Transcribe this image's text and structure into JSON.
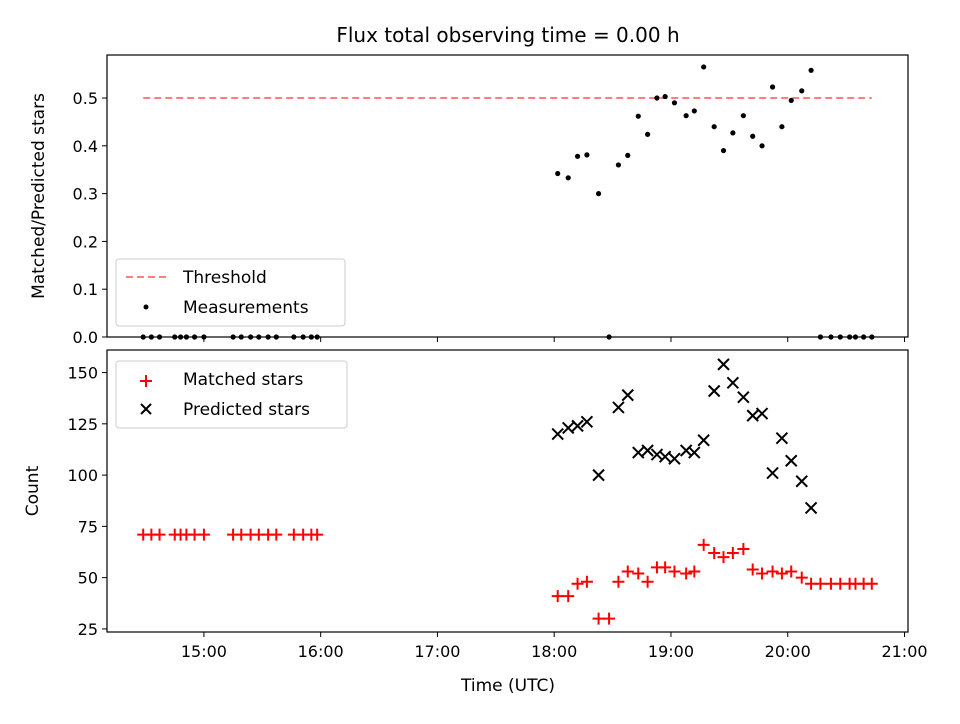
{
  "title": "Flux total observing time = 0.00 h",
  "colors": {
    "threshold": "#ff7f7f",
    "measure": "#000000",
    "matched": "#ff0000",
    "predicted": "#000000"
  },
  "chart_data": [
    {
      "type": "scatter",
      "ylabel": "Matched/Predicted stars",
      "ylim": [
        0,
        0.59
      ],
      "yticks": [
        "0.0",
        "0.1",
        "0.2",
        "0.3",
        "0.4",
        "0.5"
      ],
      "xlim": [
        14.17,
        21.03
      ],
      "legend_position": "lower-left",
      "threshold": {
        "name": "Threshold",
        "x": [
          14.48,
          20.72
        ],
        "y": 0.5
      },
      "measurements": {
        "name": "Measurements",
        "x": [
          14.48,
          14.55,
          14.62,
          14.75,
          14.8,
          14.85,
          14.92,
          15.0,
          15.25,
          15.32,
          15.4,
          15.47,
          15.55,
          15.62,
          15.77,
          15.85,
          15.92,
          15.97,
          18.03,
          18.12,
          18.2,
          18.28,
          18.38,
          18.47,
          18.55,
          18.63,
          18.72,
          18.8,
          18.88,
          18.95,
          19.03,
          19.13,
          19.2,
          19.28,
          19.37,
          19.45,
          19.53,
          19.62,
          19.7,
          19.78,
          19.87,
          19.95,
          20.03,
          20.12,
          20.2,
          20.28,
          20.37,
          20.45,
          20.53,
          20.58,
          20.65,
          20.72
        ],
        "y": [
          0,
          0,
          0,
          0,
          0,
          0,
          0,
          0,
          0,
          0,
          0,
          0,
          0,
          0,
          0,
          0,
          0,
          0,
          0.342,
          0.333,
          0.378,
          0.381,
          0.3,
          0,
          0.36,
          0.38,
          0.462,
          0.424,
          0.5,
          0.503,
          0.49,
          0.463,
          0.473,
          0.565,
          0.44,
          0.39,
          0.427,
          0.463,
          0.42,
          0.4,
          0.523,
          0.44,
          0.495,
          0.515,
          0.558,
          0,
          0,
          0,
          0,
          0,
          0,
          0
        ]
      }
    },
    {
      "type": "scatter",
      "xlabel": "Time (UTC)",
      "ylabel": "Count",
      "ylim": [
        23.5,
        161
      ],
      "yticks": [
        "25",
        "50",
        "75",
        "100",
        "125",
        "150"
      ],
      "xlim": [
        14.17,
        21.03
      ],
      "xticks": [
        "15:00",
        "16:00",
        "17:00",
        "18:00",
        "19:00",
        "20:00",
        "21:00"
      ],
      "legend_position": "top-left",
      "matched": {
        "name": "Matched stars",
        "x": [
          14.48,
          14.55,
          14.62,
          14.75,
          14.8,
          14.85,
          14.92,
          15.0,
          15.25,
          15.32,
          15.4,
          15.47,
          15.55,
          15.62,
          15.77,
          15.85,
          15.92,
          15.97,
          18.03,
          18.12,
          18.2,
          18.28,
          18.38,
          18.47,
          18.55,
          18.63,
          18.72,
          18.8,
          18.88,
          18.95,
          19.03,
          19.13,
          19.2,
          19.28,
          19.37,
          19.45,
          19.53,
          19.62,
          19.7,
          19.78,
          19.87,
          19.95,
          20.03,
          20.12,
          20.2,
          20.28,
          20.37,
          20.45,
          20.53,
          20.58,
          20.65,
          20.72
        ],
        "y": [
          71,
          71,
          71,
          71,
          71,
          71,
          71,
          71,
          71,
          71,
          71,
          71,
          71,
          71,
          71,
          71,
          71,
          71,
          41,
          41,
          47,
          48,
          30,
          30,
          48,
          53,
          52,
          48,
          55,
          55,
          53,
          52,
          53,
          66,
          62,
          60,
          62,
          64,
          54,
          52,
          53,
          52,
          53,
          50,
          47,
          47,
          47,
          47,
          47,
          47,
          47,
          47
        ]
      },
      "predicted": {
        "name": "Predicted stars",
        "x": [
          18.03,
          18.12,
          18.2,
          18.28,
          18.38,
          18.55,
          18.63,
          18.72,
          18.8,
          18.88,
          18.95,
          19.03,
          19.13,
          19.2,
          19.28,
          19.37,
          19.45,
          19.53,
          19.62,
          19.7,
          19.78,
          19.87,
          19.95,
          20.03,
          20.12,
          20.2
        ],
        "y": [
          120,
          123,
          124,
          126,
          100,
          133,
          139,
          111,
          112,
          110,
          109,
          108,
          112,
          111,
          117,
          141,
          154,
          145,
          138,
          129,
          130,
          101,
          118,
          107,
          97,
          84
        ]
      }
    }
  ]
}
